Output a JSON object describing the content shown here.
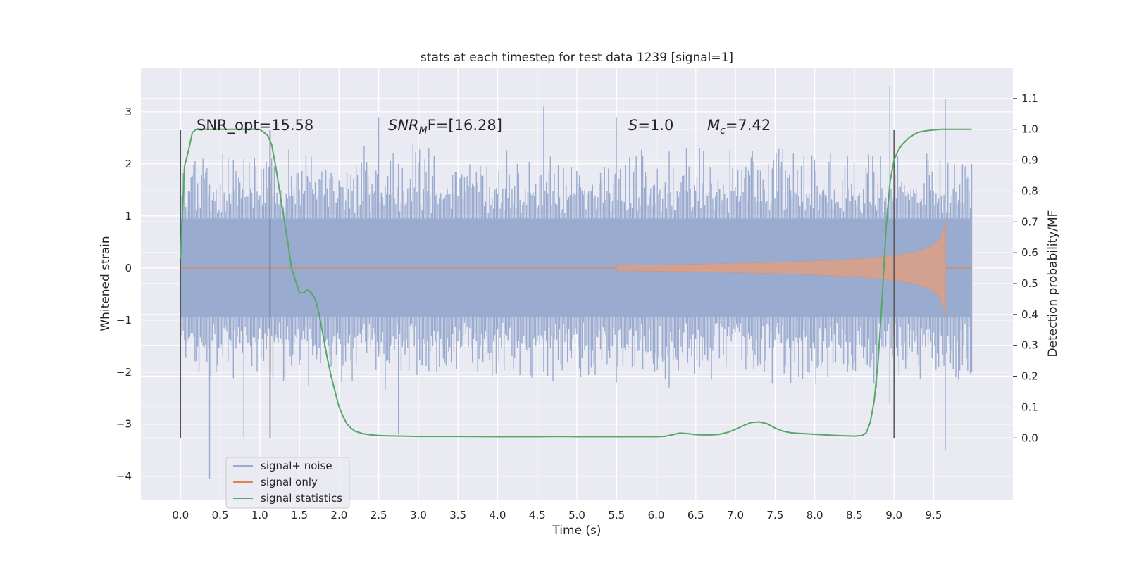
{
  "chart_data": {
    "type": "line",
    "title": "stats at each timestep for test data 1239 [signal=1]",
    "xlabel": "Time (s)",
    "ylabel": "Whitened strain",
    "ylabel_right": "Detection probability/MF",
    "xlim": [
      -0.5,
      10.5
    ],
    "ylim": [
      -4.45,
      3.85
    ],
    "ylim_right": [
      -0.2,
      1.2
    ],
    "x_ticks": [
      0.0,
      0.5,
      1.0,
      1.5,
      2.0,
      2.5,
      3.0,
      3.5,
      4.0,
      4.5,
      5.0,
      5.5,
      6.0,
      6.5,
      7.0,
      7.5,
      8.0,
      8.5,
      9.0,
      9.5
    ],
    "x_tick_labels": [
      "0.0",
      "0.5",
      "1.0",
      "1.5",
      "2.0",
      "2.5",
      "3.0",
      "3.5",
      "4.0",
      "4.5",
      "5.0",
      "5.5",
      "6.0",
      "6.5",
      "7.0",
      "7.5",
      "8.0",
      "8.5",
      "9.0",
      "9.5"
    ],
    "y_ticks": [
      3,
      2,
      1,
      0,
      -1,
      -2,
      -3,
      -4
    ],
    "y_tick_labels": [
      "3",
      "2",
      "1",
      "0",
      "−1",
      "−2",
      "−3",
      "−4"
    ],
    "y2_ticks": [
      1.1,
      1.0,
      0.9,
      0.8,
      0.7,
      0.6,
      0.5,
      0.4,
      0.3,
      0.2,
      0.1,
      0.0
    ],
    "y2_tick_labels": [
      "1.1",
      "1.0",
      "0.9",
      "0.8",
      "0.7",
      "0.6",
      "0.5",
      "0.4",
      "0.3",
      "0.2",
      "0.1",
      "0.0"
    ],
    "grid": true,
    "legend_position": "lower-left",
    "annotations": {
      "snr_opt": "SNR_opt=15.58",
      "snr_mf_base": "SNR",
      "snr_mf_sub": "M",
      "snr_mf_rest": "F=[16.28]",
      "s_var": "S",
      "s_val": "=1.0",
      "mc_var": "M",
      "mc_sub": "c",
      "mc_val": "=7.42"
    },
    "vertical_markers_x": [
      0.0,
      1.13,
      9.0
    ],
    "series": [
      {
        "name": "signal+ noise",
        "color": "#9aabd0",
        "t_range": [
          0.0,
          9.98
        ],
        "envelope": [
          {
            "t": 0.0,
            "hi": 1.5,
            "lo": -1.5
          },
          {
            "t": 0.37,
            "hi": 1.6,
            "lo": -4.05
          },
          {
            "t": 0.8,
            "hi": 2.1,
            "lo": -3.25
          },
          {
            "t": 2.5,
            "hi": 2.9,
            "lo": -1.7
          },
          {
            "t": 2.75,
            "hi": 2.0,
            "lo": -3.2
          },
          {
            "t": 4.58,
            "hi": 3.1,
            "lo": -2.0
          },
          {
            "t": 5.5,
            "hi": 2.9,
            "lo": -2.2
          },
          {
            "t": 8.95,
            "hi": 3.5,
            "lo": -2.6
          },
          {
            "t": 9.65,
            "hi": 3.25,
            "lo": -3.5
          },
          {
            "t": 9.98,
            "hi": 2.0,
            "lo": -2.0
          }
        ]
      },
      {
        "name": "signal only",
        "color": "#dd8452",
        "chirp": {
          "t_start": 5.5,
          "t_peak": 9.65,
          "peak_amplitude": 1.25,
          "end_t": 9.98
        }
      },
      {
        "name": "signal statistics",
        "color": "#55a868",
        "axis": "right",
        "x": [
          0.0,
          0.05,
          0.1,
          0.15,
          0.2,
          0.3,
          0.5,
          0.7,
          0.9,
          1.0,
          1.05,
          1.1,
          1.15,
          1.2,
          1.25,
          1.3,
          1.35,
          1.4,
          1.45,
          1.5,
          1.55,
          1.6,
          1.65,
          1.7,
          1.75,
          1.8,
          1.85,
          1.9,
          1.95,
          2.0,
          2.05,
          2.1,
          2.15,
          2.2,
          2.3,
          2.4,
          2.5,
          2.6,
          2.8,
          3.0,
          3.5,
          4.0,
          4.5,
          4.8,
          5.0,
          5.5,
          6.0,
          6.1,
          6.2,
          6.3,
          6.4,
          6.5,
          6.6,
          6.7,
          6.8,
          6.9,
          7.0,
          7.1,
          7.2,
          7.3,
          7.4,
          7.5,
          7.6,
          7.7,
          7.8,
          8.0,
          8.2,
          8.4,
          8.5,
          8.6,
          8.65,
          8.7,
          8.75,
          8.8,
          8.85,
          8.9,
          8.95,
          9.0,
          9.05,
          9.1,
          9.2,
          9.3,
          9.4,
          9.5,
          9.6,
          9.7,
          9.8,
          9.9,
          9.98
        ],
        "values": [
          0.58,
          0.88,
          0.93,
          0.99,
          1.0,
          1.0,
          1.0,
          1.0,
          1.0,
          1.0,
          0.99,
          0.98,
          0.95,
          0.88,
          0.8,
          0.72,
          0.64,
          0.55,
          0.51,
          0.47,
          0.47,
          0.48,
          0.47,
          0.45,
          0.4,
          0.33,
          0.26,
          0.2,
          0.15,
          0.1,
          0.07,
          0.045,
          0.032,
          0.022,
          0.014,
          0.01,
          0.008,
          0.007,
          0.006,
          0.005,
          0.005,
          0.004,
          0.004,
          0.005,
          0.004,
          0.004,
          0.004,
          0.005,
          0.01,
          0.016,
          0.014,
          0.011,
          0.01,
          0.01,
          0.012,
          0.018,
          0.028,
          0.04,
          0.05,
          0.052,
          0.046,
          0.032,
          0.022,
          0.017,
          0.015,
          0.012,
          0.009,
          0.007,
          0.006,
          0.008,
          0.017,
          0.05,
          0.12,
          0.25,
          0.45,
          0.68,
          0.83,
          0.9,
          0.93,
          0.95,
          0.975,
          0.99,
          0.995,
          0.998,
          1.0,
          1.0,
          1.0,
          1.0,
          1.0
        ]
      }
    ]
  }
}
